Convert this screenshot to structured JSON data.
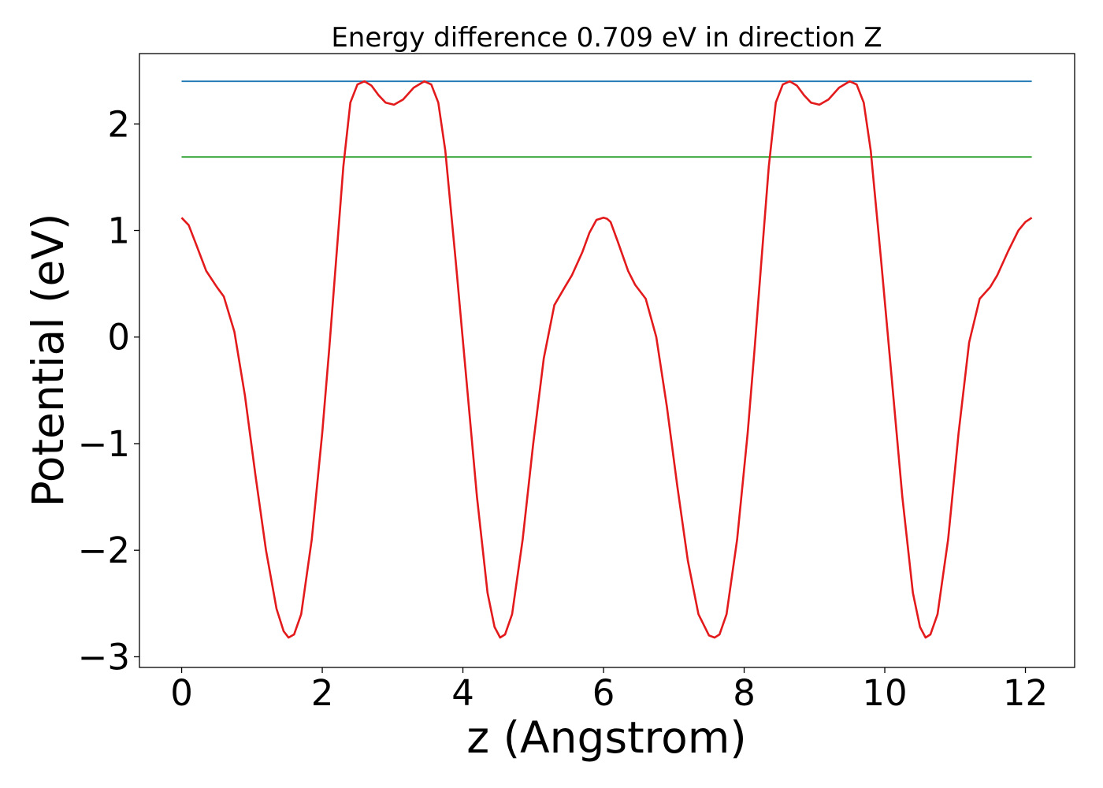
{
  "chart_data": {
    "type": "line",
    "title": "Energy difference 0.709 eV in direction Z",
    "xlabel": "z (Angstrom)",
    "ylabel": "Potential (eV)",
    "xlim": [
      -0.6,
      12.7
    ],
    "ylim": [
      -3.1,
      2.66
    ],
    "xticks": [
      0,
      2,
      4,
      6,
      8,
      10,
      12
    ],
    "xtick_labels": [
      "0",
      "2",
      "4",
      "6",
      "8",
      "10",
      "12"
    ],
    "yticks": [
      -3,
      -2,
      -1,
      0,
      1,
      2
    ],
    "ytick_labels": [
      "−3",
      "−2",
      "−1",
      "0",
      "1",
      "2"
    ],
    "grid": false,
    "series": [
      {
        "color": "#1f77b4",
        "x": [
          0,
          12.09
        ],
        "y": [
          2.4,
          2.4
        ]
      },
      {
        "color": "#2ca02c",
        "x": [
          0,
          12.09
        ],
        "y": [
          1.69,
          1.69
        ]
      },
      {
        "color": "#e31a1c",
        "x": [
          0,
          0.1,
          0.2,
          0.35,
          0.5,
          0.6,
          0.75,
          0.9,
          1.05,
          1.2,
          1.35,
          1.45,
          1.52,
          1.6,
          1.7,
          1.85,
          2.0,
          2.1,
          2.2,
          2.3,
          2.4,
          2.5,
          2.6,
          2.7,
          2.8,
          2.9,
          3.02,
          3.15,
          3.3,
          3.45,
          3.55,
          3.65,
          3.75,
          3.9,
          4.05,
          4.2,
          4.35,
          4.45,
          4.53,
          4.6,
          4.7,
          4.85,
          5.0,
          5.15,
          5.3,
          5.45,
          5.55,
          5.7,
          5.8,
          5.9,
          6.0,
          6.05,
          6.1,
          6.2,
          6.35,
          6.45,
          6.6,
          6.75,
          6.9,
          7.05,
          7.2,
          7.35,
          7.5,
          7.58,
          7.65,
          7.75,
          7.9,
          8.05,
          8.15,
          8.25,
          8.35,
          8.45,
          8.55,
          8.65,
          8.75,
          8.85,
          8.95,
          9.07,
          9.2,
          9.35,
          9.5,
          9.6,
          9.7,
          9.8,
          9.95,
          10.1,
          10.25,
          10.4,
          10.5,
          10.58,
          10.65,
          10.75,
          10.9,
          11.05,
          11.2,
          11.35,
          11.5,
          11.6,
          11.75,
          11.9,
          12.0,
          12.09
        ],
        "y": [
          1.12,
          1.05,
          0.88,
          0.62,
          0.47,
          0.38,
          0.05,
          -0.55,
          -1.3,
          -2.0,
          -2.55,
          -2.76,
          -2.82,
          -2.79,
          -2.6,
          -1.9,
          -0.9,
          -0.1,
          0.75,
          1.6,
          2.2,
          2.37,
          2.4,
          2.36,
          2.27,
          2.2,
          2.18,
          2.23,
          2.34,
          2.4,
          2.37,
          2.2,
          1.75,
          0.7,
          -0.4,
          -1.5,
          -2.4,
          -2.72,
          -2.82,
          -2.79,
          -2.6,
          -1.9,
          -1.0,
          -0.2,
          0.3,
          0.47,
          0.58,
          0.8,
          0.98,
          1.1,
          1.12,
          1.11,
          1.08,
          0.9,
          0.62,
          0.49,
          0.36,
          0.0,
          -0.65,
          -1.4,
          -2.1,
          -2.6,
          -2.8,
          -2.82,
          -2.79,
          -2.6,
          -1.9,
          -0.9,
          -0.1,
          0.75,
          1.6,
          2.2,
          2.37,
          2.4,
          2.36,
          2.27,
          2.2,
          2.18,
          2.23,
          2.34,
          2.4,
          2.37,
          2.2,
          1.75,
          0.7,
          -0.4,
          -1.5,
          -2.4,
          -2.72,
          -2.82,
          -2.79,
          -2.6,
          -1.9,
          -0.9,
          -0.05,
          0.36,
          0.47,
          0.58,
          0.8,
          1.0,
          1.08,
          1.12
        ]
      }
    ]
  }
}
